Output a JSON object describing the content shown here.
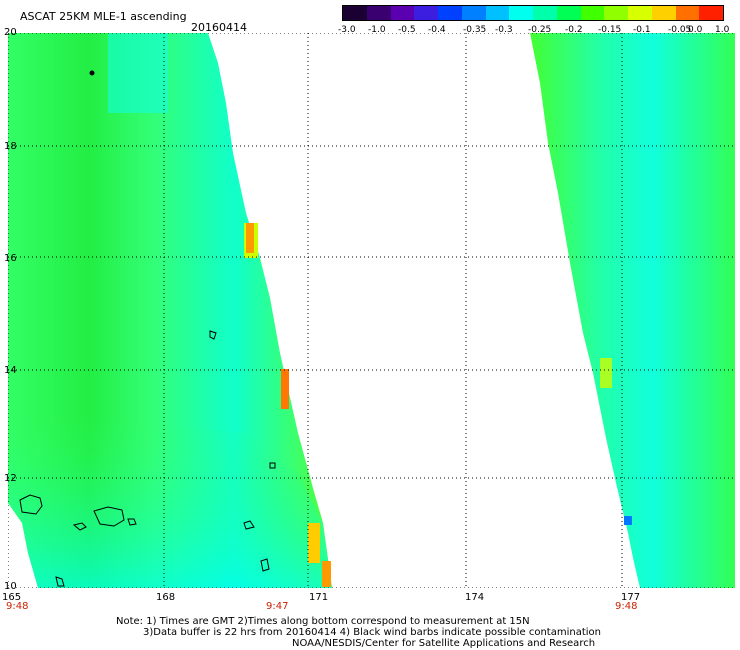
{
  "header": {
    "title": "ASCAT 25KM MLE-1 ascending",
    "date": "20160414"
  },
  "colorbar": {
    "ticks": [
      "-3.0",
      "-1.0",
      "-0.5",
      "-0.4",
      "-0.35",
      "-0.3",
      "-0.25",
      "-0.2",
      "-0.15",
      "-0.1",
      "-0.05",
      "0.0",
      "1.0"
    ],
    "colors": [
      "#1a0033",
      "#3a0070",
      "#5a00b0",
      "#3b1ee0",
      "#0040ff",
      "#0080ff",
      "#00c0ff",
      "#00ffee",
      "#00ffaa",
      "#00ff55",
      "#40ff00",
      "#90ff00",
      "#d8ff00",
      "#ffd000",
      "#ff7000",
      "#ff2000"
    ]
  },
  "axes": {
    "y_labels": [
      "20",
      "18",
      "16",
      "14",
      "12",
      "10"
    ],
    "x_labels": [
      "165",
      "168",
      "171",
      "174",
      "177"
    ]
  },
  "times": [
    "9:48",
    "9:47",
    "9:48"
  ],
  "notes": {
    "line1": "Note: 1) Times are GMT 2)Times along bottom correspond to measurement at 15N",
    "line2": "3)Data buffer is 22 hrs from 20160414 4) Black wind barbs indicate possible contamination",
    "line3": "NOAA/NESDIS/Center for Satellite Applications and Research"
  }
}
